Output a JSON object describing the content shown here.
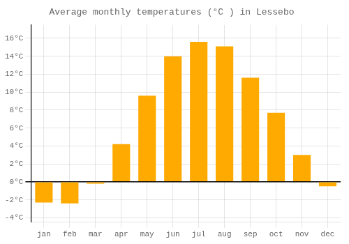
{
  "chart_data": {
    "type": "bar",
    "title": "Average monthly temperatures (°C ) in Lessebo",
    "categories": [
      "jan",
      "feb",
      "mar",
      "apr",
      "may",
      "jun",
      "jul",
      "aug",
      "sep",
      "oct",
      "nov",
      "dec"
    ],
    "values": [
      -2.3,
      -2.4,
      -0.2,
      4.2,
      9.6,
      14.0,
      15.6,
      15.1,
      11.6,
      7.7,
      3.0,
      -0.5
    ],
    "color": "#FFAA00",
    "ylim": [
      -4.5,
      17.5
    ],
    "yticks": [
      {
        "value": -4,
        "label": "-4°C"
      },
      {
        "value": -2,
        "label": "-2°C"
      },
      {
        "value": 0,
        "label": "0°C"
      },
      {
        "value": 2,
        "label": "2°C"
      },
      {
        "value": 4,
        "label": "4°C"
      },
      {
        "value": 6,
        "label": "6°C"
      },
      {
        "value": 8,
        "label": "8°C"
      },
      {
        "value": 10,
        "label": "10°C"
      },
      {
        "value": 12,
        "label": "12°C"
      },
      {
        "value": 14,
        "label": "14°C"
      },
      {
        "value": 16,
        "label": "16°C"
      }
    ],
    "grid": true
  }
}
